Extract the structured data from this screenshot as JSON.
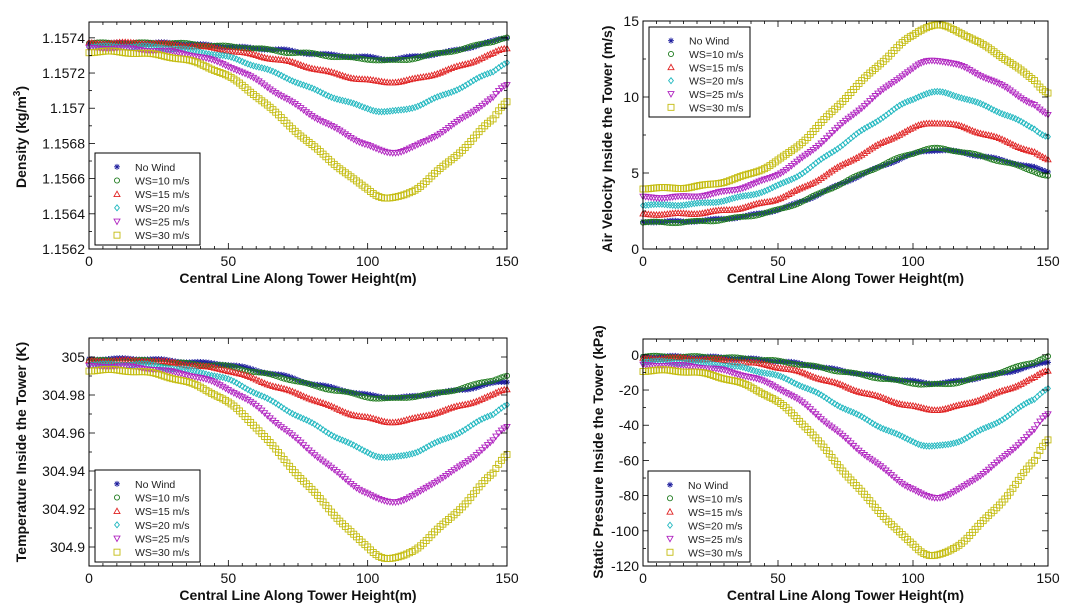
{
  "chart_data": [
    {
      "id": "density",
      "type": "scatter",
      "title": "",
      "xlabel": "Central Line Along Tower Height(m)",
      "ylabel": "Density (kg/m³)",
      "xlim": [
        0,
        150
      ],
      "ylim": [
        1.1562,
        1.15749
      ],
      "xticks": [
        0,
        50,
        100,
        150
      ],
      "xtick_labels": [
        "0",
        "50",
        "100",
        "150"
      ],
      "yticks": [
        1.1562,
        1.1564,
        1.1566,
        1.1568,
        1.157,
        1.1572,
        1.1574
      ],
      "ytick_labels": [
        "1.1562",
        "1.1564",
        "1.1566",
        "1.1568",
        "1.157",
        "1.1572",
        "1.1574"
      ],
      "grid": false,
      "legend_position": "bottom-left",
      "x": [
        0,
        10,
        20,
        30,
        40,
        50,
        60,
        70,
        80,
        90,
        100,
        107,
        115,
        125,
        135,
        145,
        150
      ],
      "series": [
        {
          "name": "No Wind",
          "marker": "asterisk",
          "color": "#1f1f9e",
          "values": [
            1.15737,
            1.15737,
            1.15737,
            1.15737,
            1.15736,
            1.15735,
            1.15734,
            1.15733,
            1.15731,
            1.1573,
            1.15729,
            1.15728,
            1.15729,
            1.15731,
            1.15734,
            1.15738,
            1.1574
          ]
        },
        {
          "name": "WS=10 m/s",
          "marker": "circle",
          "color": "#1e7b1e",
          "values": [
            1.15737,
            1.15737,
            1.15737,
            1.15737,
            1.15736,
            1.15735,
            1.15734,
            1.15732,
            1.15731,
            1.15729,
            1.15728,
            1.15727,
            1.15728,
            1.15731,
            1.15734,
            1.15738,
            1.1574
          ]
        },
        {
          "name": "WS=15 m/s",
          "marker": "triangle-up",
          "color": "#e02424",
          "values": [
            1.15737,
            1.15737,
            1.15737,
            1.15736,
            1.15735,
            1.15733,
            1.1573,
            1.15727,
            1.15723,
            1.15719,
            1.15716,
            1.15715,
            1.15716,
            1.1572,
            1.15725,
            1.15731,
            1.15734
          ]
        },
        {
          "name": "WS=20 m/s",
          "marker": "diamond",
          "color": "#22b8c0",
          "values": [
            1.15735,
            1.15735,
            1.15735,
            1.15734,
            1.15732,
            1.15729,
            1.15724,
            1.15718,
            1.15711,
            1.15705,
            1.157,
            1.15698,
            1.157,
            1.15706,
            1.15713,
            1.15721,
            1.15726
          ]
        },
        {
          "name": "WS=25 m/s",
          "marker": "triangle-down",
          "color": "#b024c0",
          "values": [
            1.15734,
            1.15734,
            1.15733,
            1.15732,
            1.15729,
            1.15724,
            1.15716,
            1.15706,
            1.15696,
            1.15687,
            1.15679,
            1.15675,
            1.15677,
            1.15685,
            1.15695,
            1.15706,
            1.15713
          ]
        },
        {
          "name": "WS=30 m/s",
          "marker": "square",
          "color": "#c4bc10",
          "values": [
            1.15732,
            1.15732,
            1.15731,
            1.15729,
            1.15725,
            1.15718,
            1.15707,
            1.15693,
            1.15679,
            1.15666,
            1.15654,
            1.15649,
            1.15652,
            1.15664,
            1.15678,
            1.15694,
            1.15704
          ]
        }
      ]
    },
    {
      "id": "velocity",
      "type": "scatter",
      "title": "",
      "xlabel": "Central Line Along Tower Height(m)",
      "ylabel": "Air Velocity Inside the Tower (m/s)",
      "xlim": [
        0,
        150
      ],
      "ylim": [
        0,
        15
      ],
      "xticks": [
        0,
        50,
        100,
        150
      ],
      "xtick_labels": [
        "0",
        "50",
        "100",
        "150"
      ],
      "yticks": [
        0,
        5,
        10,
        15
      ],
      "ytick_labels": [
        "0",
        "5",
        "10",
        "15"
      ],
      "grid": false,
      "legend_position": "top-left",
      "x": [
        0,
        10,
        20,
        30,
        40,
        50,
        60,
        70,
        80,
        90,
        100,
        107,
        115,
        125,
        135,
        145,
        150
      ],
      "series": [
        {
          "name": "No Wind",
          "marker": "asterisk",
          "color": "#1f1f9e",
          "values": [
            1.8,
            1.8,
            1.85,
            1.99,
            2.22,
            2.6,
            3.21,
            4.01,
            4.81,
            5.56,
            6.22,
            6.5,
            6.42,
            6.12,
            5.77,
            5.35,
            5.1
          ]
        },
        {
          "name": "WS=10 m/s",
          "marker": "circle",
          "color": "#1e7b1e",
          "values": [
            1.75,
            1.75,
            1.8,
            1.94,
            2.19,
            2.57,
            3.21,
            4.03,
            4.85,
            5.63,
            6.31,
            6.6,
            6.49,
            6.11,
            5.66,
            5.12,
            4.8
          ]
        },
        {
          "name": "WS=15 m/s",
          "marker": "triangle-up",
          "color": "#e02424",
          "values": [
            2.3,
            2.3,
            2.36,
            2.54,
            2.84,
            3.32,
            4.1,
            5.12,
            6.14,
            7.1,
            7.94,
            8.3,
            8.16,
            7.65,
            7.05,
            6.33,
            5.9
          ]
        },
        {
          "name": "WS=20 m/s",
          "marker": "diamond",
          "color": "#22b8c0",
          "values": [
            2.9,
            2.9,
            2.97,
            3.2,
            3.57,
            4.16,
            5.12,
            6.38,
            7.64,
            8.82,
            9.86,
            10.3,
            10.13,
            9.52,
            8.79,
            7.92,
            7.4
          ]
        },
        {
          "name": "WS=25 m/s",
          "marker": "triangle-down",
          "color": "#b024c0",
          "values": [
            3.4,
            3.4,
            3.49,
            3.76,
            4.21,
            4.93,
            6.1,
            7.63,
            9.16,
            10.6,
            11.86,
            12.4,
            12.18,
            11.43,
            10.53,
            9.45,
            8.8
          ]
        },
        {
          "name": "WS=30 m/s",
          "marker": "square",
          "color": "#c4bc10",
          "values": [
            4.0,
            4.0,
            4.11,
            4.43,
            4.96,
            5.82,
            7.21,
            9.03,
            10.85,
            12.56,
            14.06,
            14.7,
            14.44,
            13.51,
            12.41,
            11.09,
            10.3
          ]
        }
      ]
    },
    {
      "id": "temperature",
      "type": "scatter",
      "title": "",
      "xlabel": "Central Line Along Tower Height(m)",
      "ylabel": "Temperature Inside the Tower (K)",
      "xlim": [
        0,
        150
      ],
      "ylim": [
        304.89,
        305.01
      ],
      "xticks": [
        0,
        50,
        100,
        150
      ],
      "xtick_labels": [
        "0",
        "50",
        "100",
        "150"
      ],
      "yticks": [
        304.9,
        304.92,
        304.94,
        304.96,
        304.98,
        305
      ],
      "ytick_labels": [
        "304.9",
        "304.92",
        "304.94",
        "304.96",
        "304.98",
        "305"
      ],
      "grid": false,
      "legend_position": "bottom-left",
      "x": [
        0,
        10,
        20,
        30,
        40,
        50,
        60,
        70,
        80,
        90,
        100,
        107,
        115,
        125,
        135,
        145,
        150
      ],
      "series": [
        {
          "name": "No Wind",
          "marker": "asterisk",
          "color": "#1f1f9e",
          "values": [
            304.999,
            304.999,
            304.999,
            304.998,
            304.997,
            304.996,
            304.993,
            304.99,
            304.986,
            304.983,
            304.98,
            304.979,
            304.979,
            304.981,
            304.983,
            304.986,
            304.987
          ]
        },
        {
          "name": "WS=10 m/s",
          "marker": "circle",
          "color": "#1e7b1e",
          "values": [
            304.998,
            304.998,
            304.998,
            304.997,
            304.996,
            304.995,
            304.992,
            304.989,
            304.985,
            304.982,
            304.979,
            304.978,
            304.979,
            304.981,
            304.984,
            304.988,
            304.99
          ]
        },
        {
          "name": "WS=15 m/s",
          "marker": "triangle-up",
          "color": "#e02424",
          "values": [
            304.998,
            304.998,
            304.998,
            304.997,
            304.995,
            304.993,
            304.988,
            304.983,
            304.978,
            304.972,
            304.968,
            304.966,
            304.967,
            304.971,
            304.975,
            304.98,
            304.983
          ]
        },
        {
          "name": "WS=20 m/s",
          "marker": "diamond",
          "color": "#22b8c0",
          "values": [
            304.996,
            304.996,
            304.996,
            304.994,
            304.992,
            304.988,
            304.981,
            304.973,
            304.965,
            304.957,
            304.95,
            304.947,
            304.949,
            304.955,
            304.962,
            304.97,
            304.975
          ]
        },
        {
          "name": "WS=25 m/s",
          "marker": "triangle-down",
          "color": "#b024c0",
          "values": [
            304.995,
            304.995,
            304.994,
            304.992,
            304.989,
            304.983,
            304.974,
            304.962,
            304.95,
            304.938,
            304.928,
            304.924,
            304.926,
            304.935,
            304.944,
            304.956,
            304.963
          ]
        },
        {
          "name": "WS=30 m/s",
          "marker": "square",
          "color": "#c4bc10",
          "values": [
            304.993,
            304.993,
            304.992,
            304.989,
            304.984,
            304.976,
            304.963,
            304.946,
            304.93,
            304.914,
            304.9,
            304.894,
            304.897,
            304.909,
            304.923,
            304.939,
            304.949
          ]
        }
      ]
    },
    {
      "id": "pressure",
      "type": "scatter",
      "title": "",
      "xlabel": "Central Line Along Tower Height(m)",
      "ylabel": "Static Pressure Inside the Tower (kPa)",
      "xlim": [
        0,
        150
      ],
      "ylim": [
        -120,
        9
      ],
      "xticks": [
        0,
        50,
        100,
        150
      ],
      "xtick_labels": [
        "0",
        "50",
        "100",
        "150"
      ],
      "yticks": [
        -120,
        -100,
        -80,
        -60,
        -40,
        -20,
        0
      ],
      "ytick_labels": [
        "-120",
        "-100",
        "-80",
        "-60",
        "-40",
        "-20",
        "0"
      ],
      "grid": false,
      "legend_position": "bottom-left",
      "x": [
        0,
        10,
        20,
        30,
        40,
        50,
        60,
        70,
        80,
        90,
        100,
        107,
        115,
        125,
        135,
        145,
        150
      ],
      "series": [
        {
          "name": "No Wind",
          "marker": "asterisk",
          "color": "#1f1f9e",
          "values": [
            -1.0,
            -1.0,
            -1.2,
            -1.6,
            -2.4,
            -3.6,
            -5.5,
            -8.1,
            -10.6,
            -13.0,
            -15.1,
            -16.0,
            -15.3,
            -12.8,
            -9.8,
            -6.2,
            -4.0
          ]
        },
        {
          "name": "WS=10 m/s",
          "marker": "circle",
          "color": "#1e7b1e",
          "values": [
            -1.0,
            -1.0,
            -1.2,
            -1.6,
            -2.4,
            -3.7,
            -5.8,
            -8.5,
            -11.2,
            -13.8,
            -16.0,
            -17.0,
            -16.0,
            -12.7,
            -8.7,
            -3.9,
            -1.0
          ]
        },
        {
          "name": "WS=15 m/s",
          "marker": "triangle-up",
          "color": "#e02424",
          "values": [
            -2.0,
            -2.0,
            -2.3,
            -3.2,
            -4.6,
            -6.9,
            -10.7,
            -15.6,
            -20.6,
            -25.2,
            -29.3,
            -31.0,
            -29.7,
            -25.1,
            -19.6,
            -13.0,
            -9.0
          ]
        },
        {
          "name": "WS=20 m/s",
          "marker": "diamond",
          "color": "#22b8c0",
          "values": [
            -4.0,
            -4.0,
            -4.5,
            -5.9,
            -8.3,
            -12.2,
            -18.4,
            -26.6,
            -34.7,
            -42.4,
            -49.1,
            -52.0,
            -50.0,
            -43.1,
            -34.8,
            -24.9,
            -19.0
          ]
        },
        {
          "name": "WS=25 m/s",
          "marker": "triangle-down",
          "color": "#b024c0",
          "values": [
            -6.0,
            -6.0,
            -6.8,
            -9.0,
            -12.8,
            -18.8,
            -28.5,
            -41.3,
            -54.0,
            -66.0,
            -76.5,
            -81.0,
            -78.2,
            -68.3,
            -56.6,
            -42.5,
            -34.0
          ]
        },
        {
          "name": "WS=30 m/s",
          "marker": "square",
          "color": "#c4bc10",
          "values": [
            -9.0,
            -9.0,
            -10.1,
            -13.2,
            -18.5,
            -26.9,
            -40.5,
            -58.4,
            -76.2,
            -93.0,
            -107.7,
            -114.0,
            -110.0,
            -96.2,
            -79.7,
            -59.9,
            -48.0
          ]
        }
      ]
    }
  ]
}
